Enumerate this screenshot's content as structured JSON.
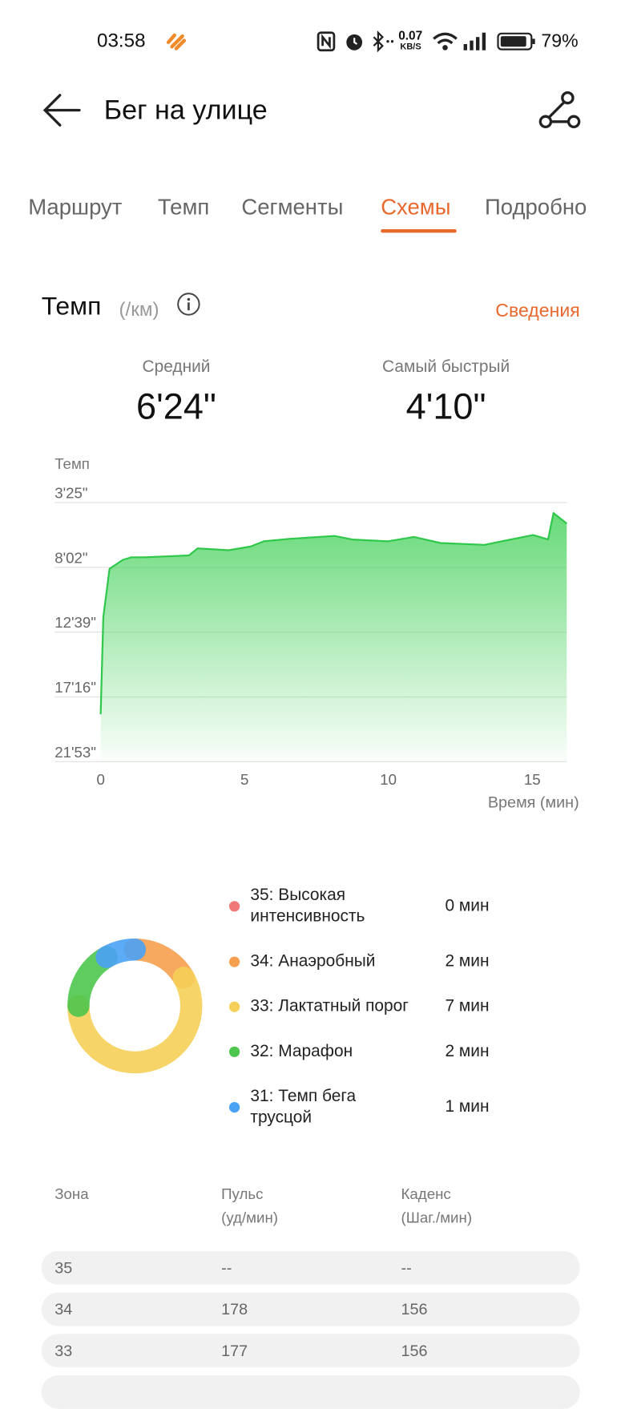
{
  "status_bar": {
    "time": "03:58",
    "network_speed": "0.07",
    "network_unit": "KB/S",
    "battery": "79%"
  },
  "header": {
    "title": "Бег на улице"
  },
  "tabs": [
    "Маршрут",
    "Темп",
    "Сегменты",
    "Схемы",
    "Подробно"
  ],
  "pace": {
    "title": "Темп",
    "unit": "(/км)",
    "details_link": "Сведения",
    "average_label": "Средний",
    "average": "6'24\"",
    "fastest_label": "Самый быстрый",
    "fastest": "4'10\""
  },
  "chart_data": [
    {
      "type": "line",
      "y_label": "Темп",
      "x_label": "Время (мин)",
      "x": [
        0,
        0.09,
        0.31,
        0.77,
        1.07,
        1.53,
        3.07,
        3.37,
        4.45,
        5.21,
        5.67,
        6.6,
        8.13,
        8.74,
        9.97,
        10.89,
        11.81,
        13.34,
        14.26,
        15.03,
        15.55,
        15.74,
        16.2
      ],
      "values": [
        1110,
        695,
        488,
        450,
        439,
        439,
        431,
        401,
        409,
        393,
        371,
        360,
        348,
        363,
        371,
        352,
        378,
        386,
        363,
        344,
        363,
        250,
        295
      ],
      "color": "#2fc84a",
      "xlim": [
        -1.6,
        16.2
      ],
      "xticks": [
        0,
        5,
        10,
        15
      ],
      "ylim": [
        1313,
        205
      ],
      "yticks": [
        {
          "value": 205,
          "label": "3'25\""
        },
        {
          "value": 482,
          "label": "8'02\""
        },
        {
          "value": 759,
          "label": "12'39\""
        },
        {
          "value": 1036,
          "label": "17'16\""
        },
        {
          "value": 1313,
          "label": "21'53\""
        }
      ],
      "grid": true
    },
    {
      "type": "donut",
      "categories": [
        "35: Высокая\nинтенсивность",
        "34: Анаэробный",
        "33: Лактатный порог",
        "32: Марафон",
        "31: Темп бега\nтрусцой"
      ],
      "values": [
        0,
        2,
        7,
        2,
        1
      ],
      "value_labels": [
        "0 мин",
        "2 мин",
        "7 мин",
        "2 мин",
        "1 мин"
      ],
      "colors": [
        "#f07878",
        "#f5a04e",
        "#f6cf58",
        "#4cc64c",
        "#4aa2f5"
      ]
    }
  ],
  "zone_table": {
    "header": [
      "Зона",
      "Пульс\n(уд/мин)",
      "Каденс\n(Шаг./мин)"
    ],
    "rows": [
      [
        "35",
        "--",
        "--"
      ],
      [
        "34",
        "178",
        "156"
      ],
      [
        "33",
        "177",
        "156"
      ]
    ]
  }
}
